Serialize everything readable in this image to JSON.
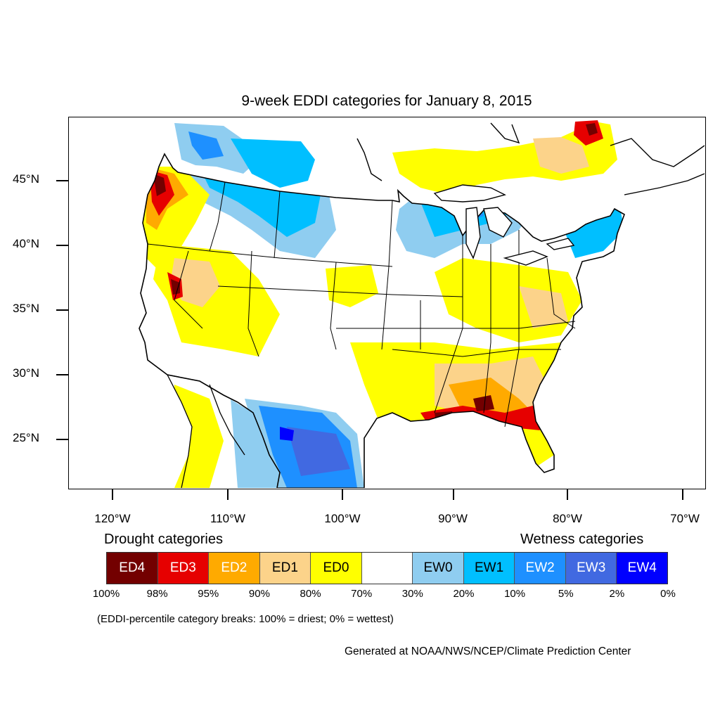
{
  "title": "9-week EDDI categories for January 8, 2015",
  "lat_labels": [
    "45°N",
    "40°N",
    "35°N",
    "30°N",
    "25°N"
  ],
  "lon_labels": [
    "120°W",
    "110°W",
    "100°W",
    "90°W",
    "80°W",
    "70°W"
  ],
  "legend": {
    "drought_caption": "Drought categories",
    "wetness_caption": "Wetness categories",
    "categories": [
      {
        "label": "ED4",
        "color": "#730000",
        "text_color": "#ffffff"
      },
      {
        "label": "ED3",
        "color": "#e60000",
        "text_color": "#ffffff"
      },
      {
        "label": "ED2",
        "color": "#ffaa00",
        "text_color": "#ffffff"
      },
      {
        "label": "ED1",
        "color": "#fcd38a",
        "text_color": "#000000"
      },
      {
        "label": "ED0",
        "color": "#ffff00",
        "text_color": "#000000"
      },
      {
        "label": "",
        "color": "#ffffff",
        "text_color": "#000000"
      },
      {
        "label": "EW0",
        "color": "#8fcdf0",
        "text_color": "#000000"
      },
      {
        "label": "EW1",
        "color": "#00bfff",
        "text_color": "#000000"
      },
      {
        "label": "EW2",
        "color": "#1e90ff",
        "text_color": "#ffffff"
      },
      {
        "label": "EW3",
        "color": "#4169e1",
        "text_color": "#ffffff"
      },
      {
        "label": "EW4",
        "color": "#0000ff",
        "text_color": "#ffffff"
      }
    ],
    "percentiles": [
      "100%",
      "98%",
      "95%",
      "90%",
      "80%",
      "70%",
      "30%",
      "20%",
      "10%",
      "5%",
      "2%",
      "0%"
    ]
  },
  "note": "(EDDI-percentile category breaks: 100% = driest; 0% = wettest)",
  "credit": "Generated at NOAA/NWS/NCEP/Climate Prediction Center"
}
